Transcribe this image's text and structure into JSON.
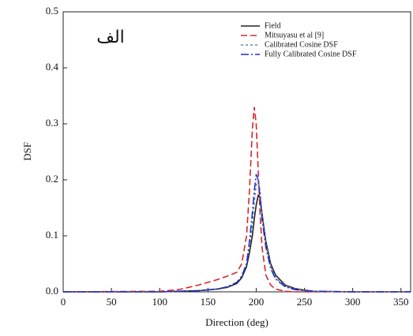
{
  "chart_data": {
    "type": "line",
    "annotation": "الف",
    "x_label": "Direction (deg)",
    "y_label": "DSF",
    "xlim": [
      0,
      360
    ],
    "xticks": [
      0,
      50,
      100,
      150,
      200,
      250,
      300,
      350
    ],
    "ylim": [
      0,
      0.5
    ],
    "yticks": [
      {
        "value": 0,
        "label": "0.0"
      },
      0.1,
      0.2,
      0.3,
      0.4,
      0.5
    ],
    "legend": "upper right",
    "series": [
      {
        "name": "Field",
        "color": "#222222",
        "dash": "none",
        "x": [
          0,
          100,
          120,
          140,
          160,
          170,
          180,
          185,
          190,
          193,
          196,
          198,
          200,
          202,
          204,
          206,
          210,
          215,
          220,
          230,
          240,
          250,
          260,
          300,
          360
        ],
        "values": [
          0,
          0,
          0.001,
          0.002,
          0.005,
          0.008,
          0.015,
          0.025,
          0.045,
          0.07,
          0.1,
          0.13,
          0.155,
          0.172,
          0.168,
          0.14,
          0.09,
          0.05,
          0.03,
          0.012,
          0.006,
          0.003,
          0.001,
          0,
          0
        ]
      },
      {
        "name": "Mitsuyasu et al [9]",
        "color": "#d62728",
        "dash": "8,4",
        "x": [
          0,
          100,
          120,
          140,
          160,
          170,
          180,
          185,
          190,
          193,
          196,
          198,
          200,
          202,
          204,
          206,
          210,
          215,
          220,
          230,
          240,
          250,
          260,
          300,
          360
        ],
        "values": [
          0,
          0.001,
          0.004,
          0.012,
          0.022,
          0.028,
          0.035,
          0.05,
          0.1,
          0.18,
          0.29,
          0.33,
          0.3,
          0.22,
          0.14,
          0.08,
          0.03,
          0.012,
          0.005,
          0.001,
          0,
          0,
          0,
          0,
          0
        ]
      },
      {
        "name": "Calibrated Cosine DSF",
        "color": "#6a8a8a",
        "dash": "3,3",
        "x": [
          0,
          100,
          120,
          140,
          160,
          170,
          180,
          185,
          190,
          193,
          196,
          198,
          200,
          202,
          204,
          206,
          210,
          215,
          220,
          230,
          240,
          250,
          260,
          300,
          360
        ],
        "values": [
          0,
          0,
          0.001,
          0.002,
          0.005,
          0.009,
          0.017,
          0.028,
          0.05,
          0.08,
          0.12,
          0.16,
          0.19,
          0.2,
          0.18,
          0.14,
          0.085,
          0.045,
          0.025,
          0.01,
          0.005,
          0.002,
          0.001,
          0,
          0
        ]
      },
      {
        "name": "Fully Calibrated Cosine DSF",
        "color": "#1f2fd6",
        "dash": "10,3,2,3",
        "x": [
          0,
          100,
          120,
          140,
          160,
          170,
          180,
          185,
          190,
          193,
          196,
          198,
          200,
          202,
          204,
          206,
          210,
          215,
          220,
          230,
          240,
          250,
          260,
          300,
          360
        ],
        "values": [
          0,
          0,
          0.001,
          0.002,
          0.005,
          0.009,
          0.017,
          0.028,
          0.05,
          0.09,
          0.14,
          0.18,
          0.21,
          0.2,
          0.17,
          0.13,
          0.08,
          0.042,
          0.023,
          0.009,
          0.004,
          0.002,
          0.001,
          0,
          0
        ]
      }
    ]
  }
}
